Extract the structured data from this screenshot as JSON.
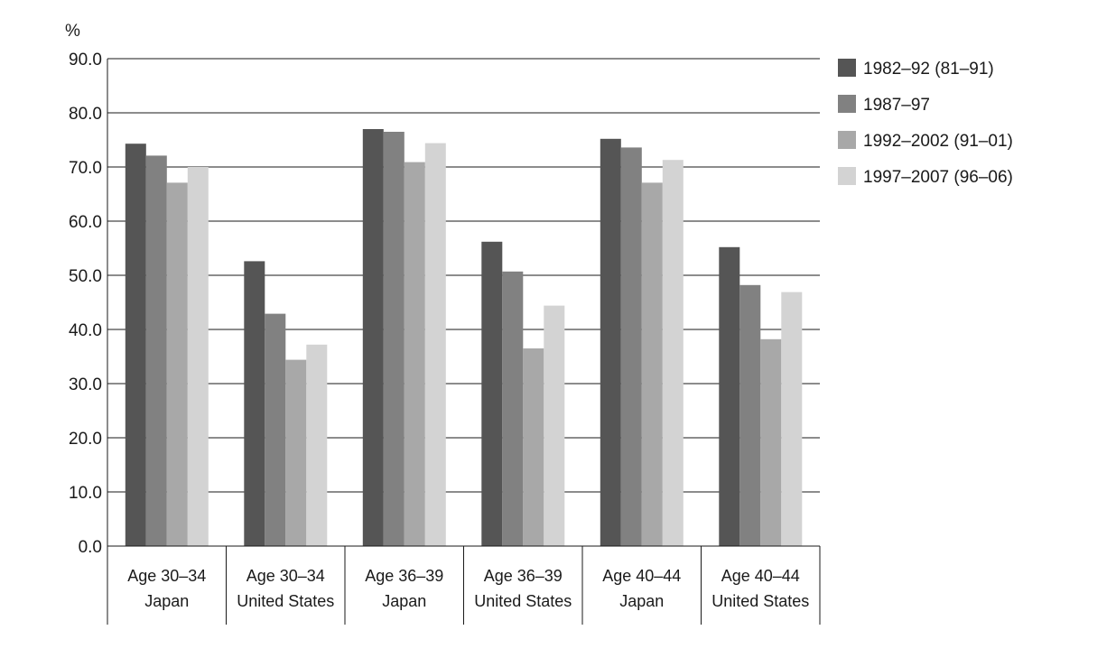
{
  "chart_data": {
    "type": "bar",
    "y_unit": "%",
    "ylim": [
      0,
      90
    ],
    "yticks": [
      "0.0",
      "10.0",
      "20.0",
      "30.0",
      "40.0",
      "50.0",
      "60.0",
      "70.0",
      "80.0",
      "90.0"
    ],
    "grid": true,
    "legend_position": "right",
    "categories": [
      {
        "line1": "Age 30–34",
        "line2": "Japan"
      },
      {
        "line1": "Age 30–34",
        "line2": "United States"
      },
      {
        "line1": "Age 36–39",
        "line2": "Japan"
      },
      {
        "line1": "Age 36–39",
        "line2": "United States"
      },
      {
        "line1": "Age 40–44",
        "line2": "Japan"
      },
      {
        "line1": "Age 40–44",
        "line2": "United States"
      }
    ],
    "series": [
      {
        "name": "1982–92 (81–91)",
        "color": "#555555",
        "values": [
          74.3,
          52.6,
          77.0,
          56.2,
          75.2,
          55.2
        ]
      },
      {
        "name": "1987–97",
        "color": "#818181",
        "values": [
          72.1,
          42.9,
          76.5,
          50.7,
          73.6,
          48.2
        ]
      },
      {
        "name": "1992–2002 (91–01)",
        "color": "#a8a8a8",
        "values": [
          67.1,
          34.4,
          70.9,
          36.5,
          67.1,
          38.2
        ]
      },
      {
        "name": "1997–2007 (96–06)",
        "color": "#d3d3d3",
        "values": [
          70.0,
          37.2,
          74.4,
          44.4,
          71.3,
          46.9
        ]
      }
    ]
  }
}
